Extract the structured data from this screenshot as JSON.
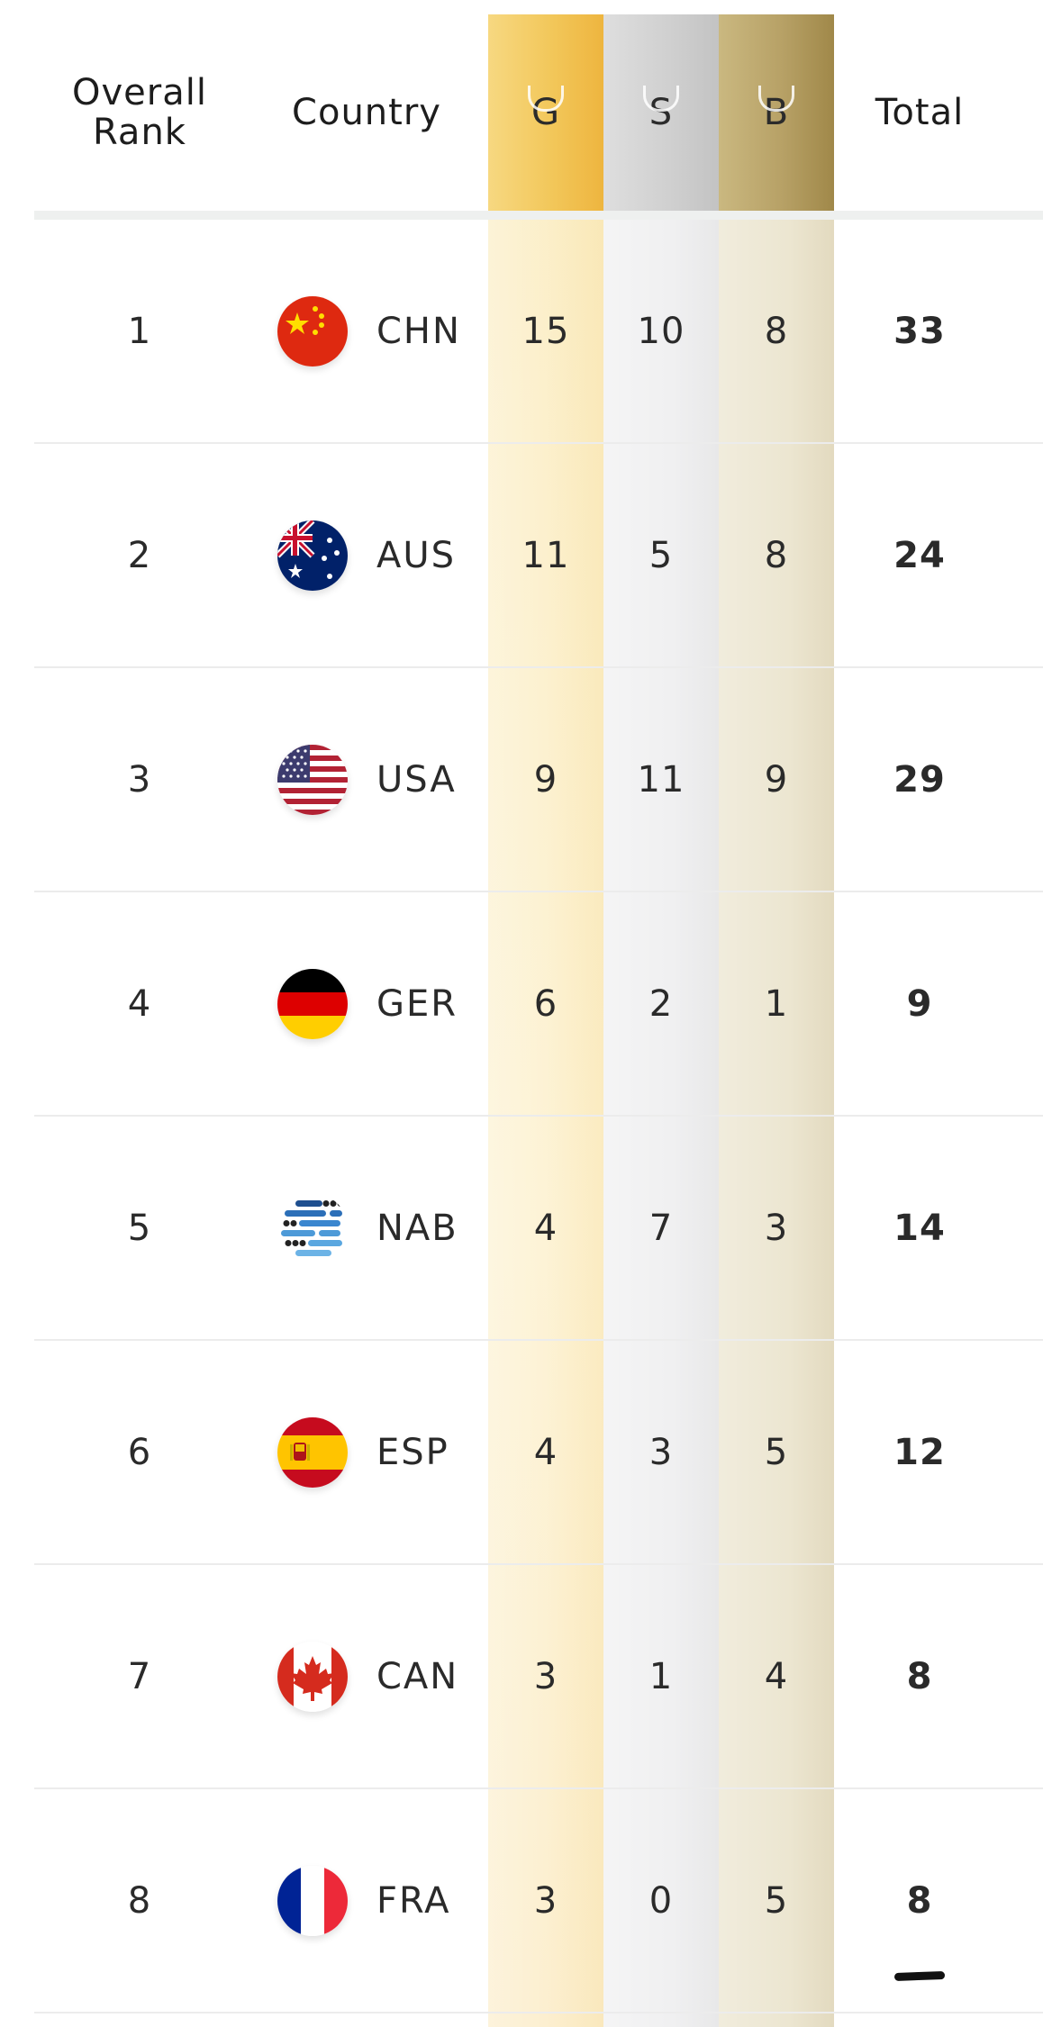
{
  "header": {
    "rank_label": "Overall Rank",
    "country_label": "Country",
    "gold_label": "G",
    "silver_label": "S",
    "bronze_label": "B",
    "total_label": "Total"
  },
  "colors": {
    "gold": "#f2c75a",
    "silver": "#cfcfcf",
    "bronze": "#b7a166"
  },
  "rows": [
    {
      "rank": "1",
      "code": "CHN",
      "flag": "china-flag-icon",
      "gold": "15",
      "silver": "10",
      "bronze": "8",
      "total": "33"
    },
    {
      "rank": "2",
      "code": "AUS",
      "flag": "australia-flag-icon",
      "gold": "11",
      "silver": "5",
      "bronze": "8",
      "total": "24"
    },
    {
      "rank": "3",
      "code": "USA",
      "flag": "usa-flag-icon",
      "gold": "9",
      "silver": "11",
      "bronze": "9",
      "total": "29"
    },
    {
      "rank": "4",
      "code": "GER",
      "flag": "germany-flag-icon",
      "gold": "6",
      "silver": "2",
      "bronze": "1",
      "total": "9"
    },
    {
      "rank": "5",
      "code": "NAB",
      "flag": "neutral-athletes-icon",
      "gold": "4",
      "silver": "7",
      "bronze": "3",
      "total": "14"
    },
    {
      "rank": "6",
      "code": "ESP",
      "flag": "spain-flag-icon",
      "gold": "4",
      "silver": "3",
      "bronze": "5",
      "total": "12"
    },
    {
      "rank": "7",
      "code": "CAN",
      "flag": "canada-flag-icon",
      "gold": "3",
      "silver": "1",
      "bronze": "4",
      "total": "8"
    },
    {
      "rank": "8",
      "code": "FRA",
      "flag": "france-flag-icon",
      "gold": "3",
      "silver": "0",
      "bronze": "5",
      "total": "8"
    }
  ]
}
